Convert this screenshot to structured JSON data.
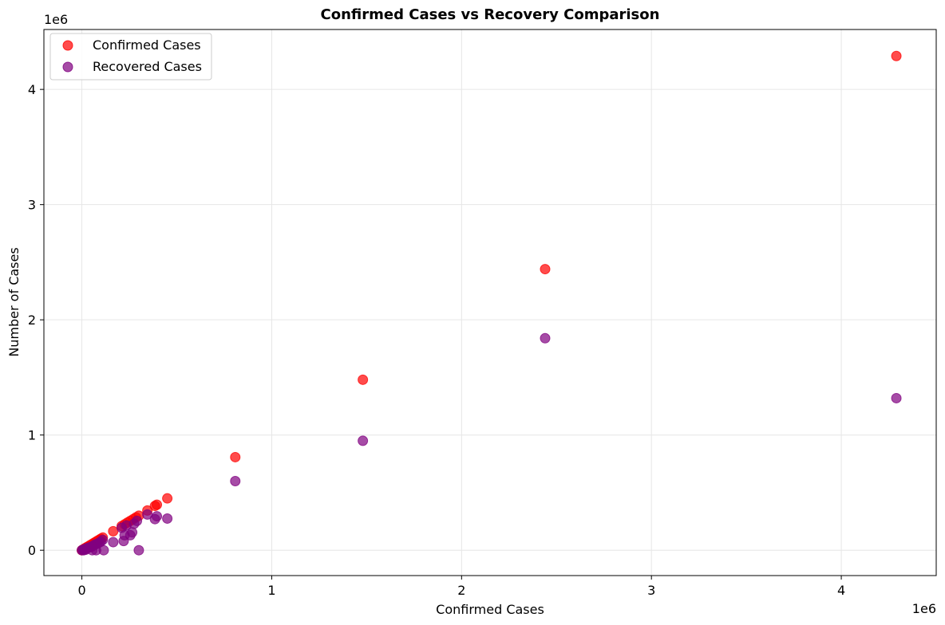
{
  "chart_data": {
    "type": "scatter",
    "title": "Confirmed Cases vs Recovery Comparison",
    "xlabel": "Confirmed Cases",
    "ylabel": "Number of Cases",
    "x_offset_label": "1e6",
    "y_offset_label": "1e6",
    "xlim": [
      -200000,
      4500000
    ],
    "ylim": [
      -220000,
      4520000
    ],
    "x_ticks": [
      0,
      1000000,
      2000000,
      3000000,
      4000000
    ],
    "x_tick_labels": [
      "0",
      "1",
      "2",
      "3",
      "4"
    ],
    "y_ticks": [
      0,
      1000000,
      2000000,
      3000000,
      4000000
    ],
    "y_tick_labels": [
      "0",
      "1",
      "2",
      "3",
      "4"
    ],
    "grid": true,
    "legend_position": "top-left",
    "series": [
      {
        "name": "Confirmed Cases",
        "color": "#ff0000",
        "points": [
          [
            0,
            0
          ],
          [
            3000,
            3000
          ],
          [
            6000,
            6000
          ],
          [
            10000,
            10000
          ],
          [
            15000,
            15000
          ],
          [
            20000,
            20000
          ],
          [
            25000,
            25000
          ],
          [
            30000,
            30000
          ],
          [
            40000,
            40000
          ],
          [
            50000,
            50000
          ],
          [
            60000,
            60000
          ],
          [
            70000,
            70000
          ],
          [
            80000,
            80000
          ],
          [
            90000,
            90000
          ],
          [
            100000,
            100000
          ],
          [
            110000,
            110000
          ],
          [
            165000,
            165000
          ],
          [
            210000,
            210000
          ],
          [
            225000,
            225000
          ],
          [
            240000,
            240000
          ],
          [
            255000,
            255000
          ],
          [
            270000,
            270000
          ],
          [
            285000,
            285000
          ],
          [
            300000,
            300000
          ],
          [
            345000,
            345000
          ],
          [
            385000,
            385000
          ],
          [
            395000,
            395000
          ],
          [
            450000,
            450000
          ],
          [
            808000,
            808000
          ],
          [
            1480000,
            1480000
          ],
          [
            2440000,
            2440000
          ],
          [
            4290000,
            4290000
          ]
        ]
      },
      {
        "name": "Recovered Cases",
        "color": "#800080",
        "points": [
          [
            0,
            0
          ],
          [
            5000,
            3000
          ],
          [
            10000,
            0
          ],
          [
            15000,
            10000
          ],
          [
            20000,
            5000
          ],
          [
            25000,
            15000
          ],
          [
            30000,
            20000
          ],
          [
            40000,
            25000
          ],
          [
            50000,
            30000
          ],
          [
            55000,
            0
          ],
          [
            60000,
            40000
          ],
          [
            70000,
            50000
          ],
          [
            75000,
            0
          ],
          [
            80000,
            55000
          ],
          [
            90000,
            65000
          ],
          [
            100000,
            75000
          ],
          [
            110000,
            90000
          ],
          [
            115000,
            0
          ],
          [
            165000,
            70000
          ],
          [
            210000,
            195000
          ],
          [
            220000,
            80000
          ],
          [
            225000,
            130000
          ],
          [
            235000,
            215000
          ],
          [
            255000,
            130000
          ],
          [
            265000,
            155000
          ],
          [
            275000,
            230000
          ],
          [
            290000,
            255000
          ],
          [
            300000,
            0
          ],
          [
            345000,
            310000
          ],
          [
            385000,
            270000
          ],
          [
            395000,
            295000
          ],
          [
            450000,
            275000
          ],
          [
            808000,
            600000
          ],
          [
            1480000,
            950000
          ],
          [
            2440000,
            1840000
          ],
          [
            4290000,
            1320000
          ]
        ]
      }
    ]
  }
}
